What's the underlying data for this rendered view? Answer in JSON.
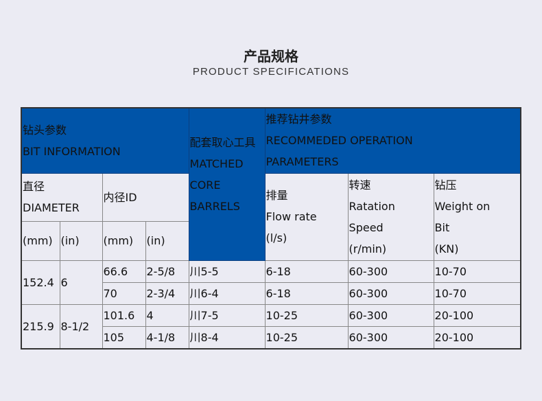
{
  "header": {
    "title": "产品规格",
    "subtitle": "PRODUCT SPECIFICATIONS"
  },
  "table": {
    "bit_info": [
      "钻头参数",
      "BIT INFORMATION"
    ],
    "core_barrels": [
      "配套取心工具",
      "MATCHED",
      "CORE",
      "BARRELS"
    ],
    "operation": [
      "推荐钻井参数",
      "RECOMMEDED OPERATION",
      "PARAMETERS"
    ],
    "diameter": [
      "直径",
      "DIAMETER"
    ],
    "inner_id": "内径ID",
    "units": [
      "(mm)",
      "(in)",
      "(mm)",
      "(in)"
    ],
    "flow_rate": [
      "排量",
      "Flow rate",
      "(l/s)"
    ],
    "rotation": [
      "转速",
      "Ratation",
      "Speed",
      "(r/min)"
    ],
    "wob": [
      "钻压",
      "Weight on",
      "Bit",
      "(KN)"
    ],
    "groups": [
      {
        "mm": "152.4",
        "in": "6",
        "rows": [
          {
            "id_mm": "66.6",
            "id_in": "2-5/8",
            "barrel": "川5-5",
            "flow": "6-18",
            "speed": "60-300",
            "wob": "10-70"
          },
          {
            "id_mm": "70",
            "id_in": "2-3/4",
            "barrel": "川6-4",
            "flow": "6-18",
            "speed": "60-300",
            "wob": "10-70"
          }
        ]
      },
      {
        "mm": "215.9",
        "in": "8-1/2",
        "rows": [
          {
            "id_mm": "101.6",
            "id_in": "4",
            "barrel": "川7-5",
            "flow": "10-25",
            "speed": "60-300",
            "wob": "20-100"
          },
          {
            "id_mm": "105",
            "id_in": "4-1/8",
            "barrel": "川8-4",
            "flow": "10-25",
            "speed": "60-300",
            "wob": "20-100"
          }
        ]
      }
    ]
  }
}
